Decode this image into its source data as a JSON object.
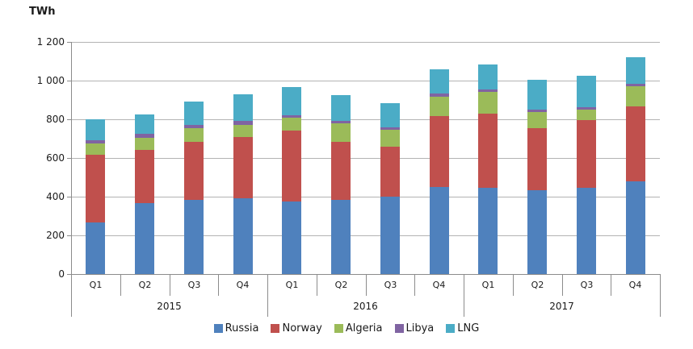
{
  "chart_data": {
    "type": "bar",
    "stacked": true,
    "title": "TWh",
    "unit": "TWh",
    "categories": [
      "Q1",
      "Q2",
      "Q3",
      "Q4",
      "Q1",
      "Q2",
      "Q3",
      "Q4",
      "Q1",
      "Q2",
      "Q3",
      "Q4"
    ],
    "group_labels": [
      "2015",
      "2016",
      "2017"
    ],
    "series": [
      {
        "name": "Russia",
        "color": "#4F81BD",
        "values": [
          265,
          365,
          385,
          390,
          375,
          385,
          400,
          450,
          445,
          435,
          445,
          480
        ]
      },
      {
        "name": "Norway",
        "color": "#C0504D",
        "values": [
          350,
          275,
          300,
          320,
          365,
          298,
          260,
          365,
          385,
          320,
          350,
          385
        ]
      },
      {
        "name": "Algeria",
        "color": "#9BBB59",
        "values": [
          60,
          65,
          70,
          62,
          69,
          96,
          85,
          103,
          113,
          83,
          55,
          105
        ]
      },
      {
        "name": "Libya",
        "color": "#8064A2",
        "values": [
          18,
          18,
          17,
          18,
          13,
          14,
          14,
          17,
          12,
          11,
          14,
          14
        ]
      },
      {
        "name": "LNG",
        "color": "#4BACC6",
        "values": [
          105,
          102,
          118,
          140,
          145,
          131,
          125,
          125,
          130,
          155,
          160,
          136
        ]
      }
    ],
    "ylim": [
      0,
      1200
    ],
    "ytick_step": 200,
    "ytick_labels": [
      "0",
      "200",
      "400",
      "600",
      "800",
      "1 000",
      "1 200"
    ],
    "grid": true,
    "legend_position": "bottom"
  },
  "colors": {
    "gridline": "#a6a6a6",
    "axis": "#8c8c8c",
    "text": "#1a1a1a"
  }
}
